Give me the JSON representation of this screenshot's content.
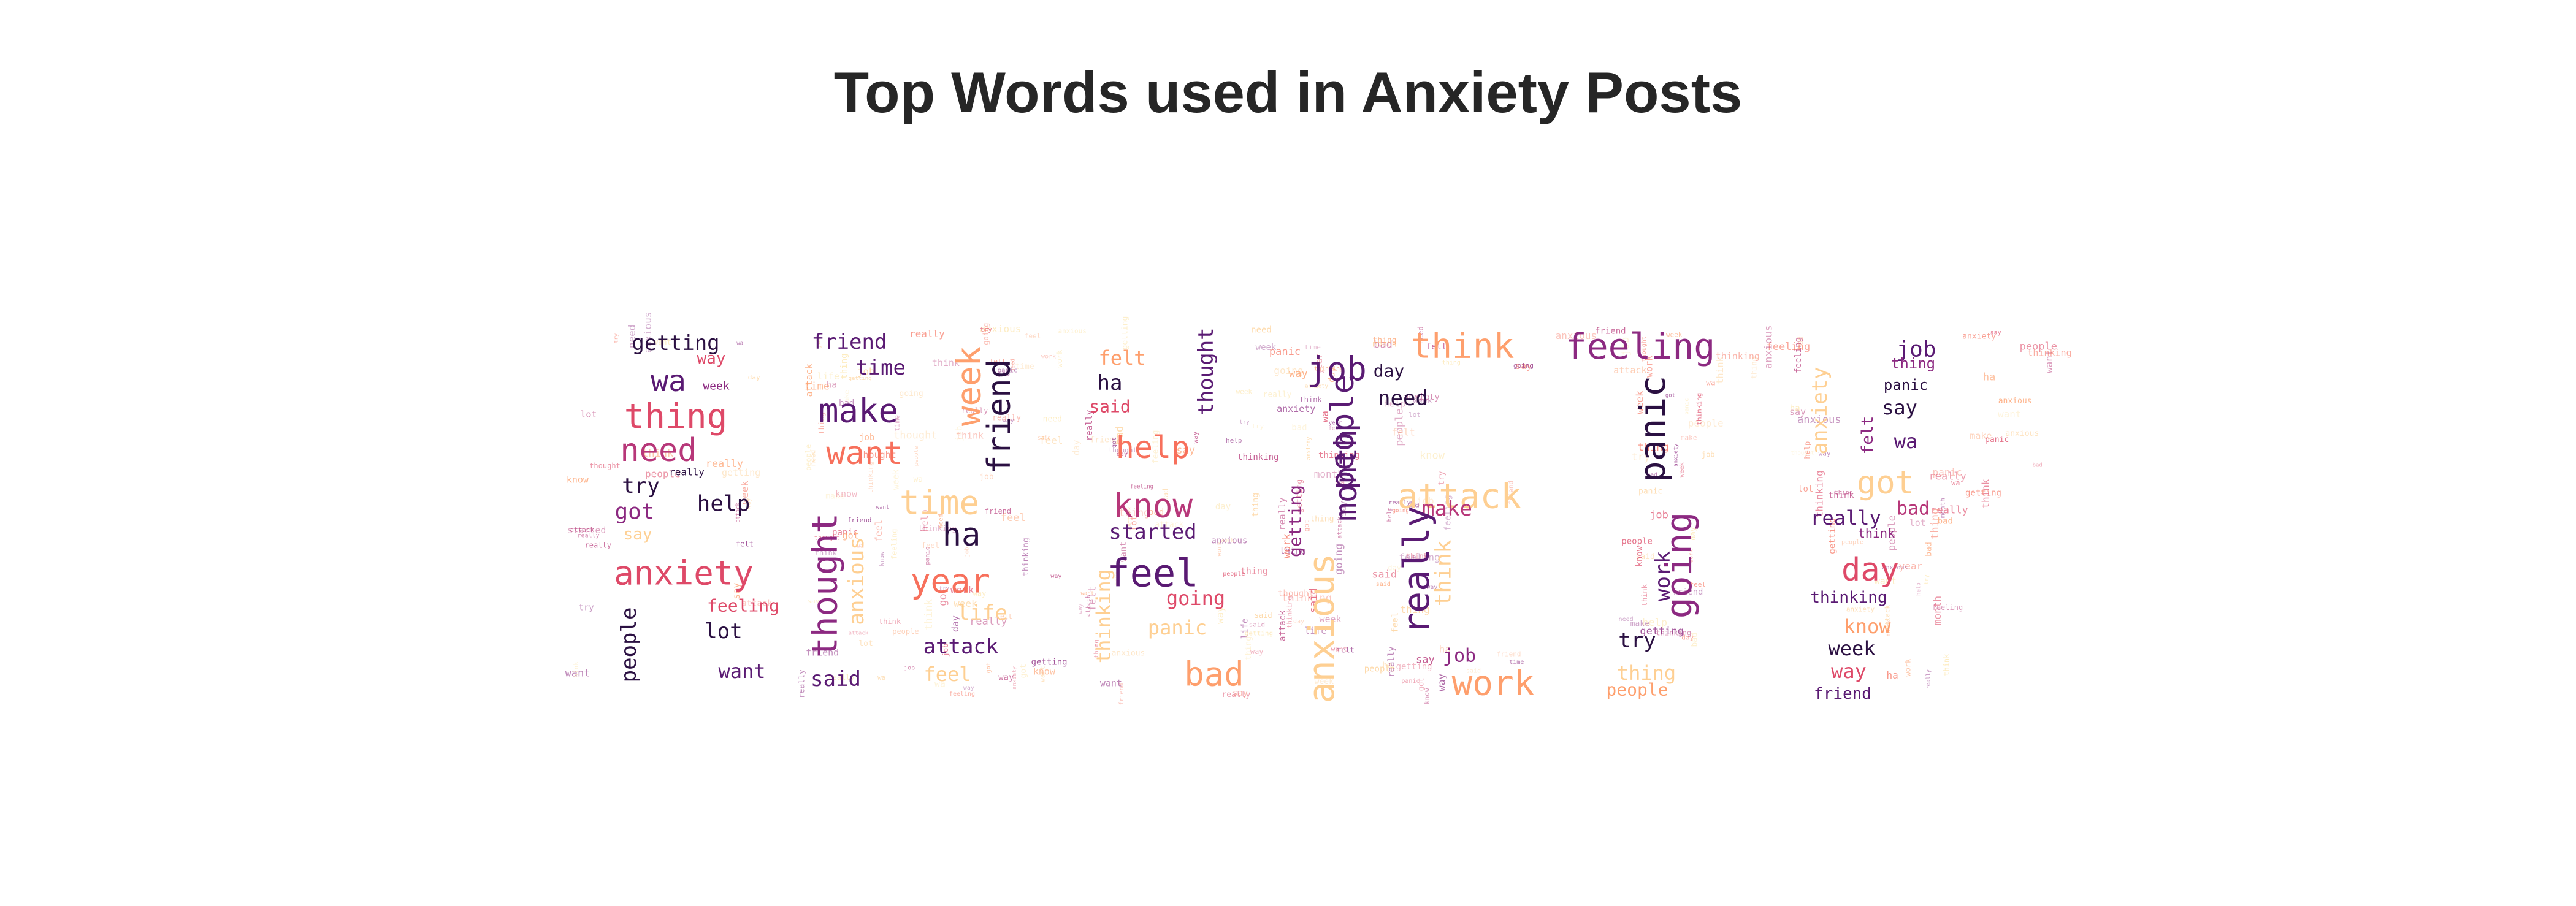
{
  "chart_data": {
    "type": "wordcloud",
    "title": "Top Words used in Anxiety Posts",
    "mask_shape": "ANXIETY",
    "colormap": "magma",
    "palette": [
      "#2b1042",
      "#5a1a73",
      "#8c2981",
      "#b73779",
      "#de4968",
      "#f7705c",
      "#fe9f6d",
      "#fecf92",
      "#fde7b0"
    ],
    "words": [
      {
        "text": "getting",
        "freq": 28,
        "color": "#2b1042"
      },
      {
        "text": "way",
        "freq": 22,
        "color": "#de4968"
      },
      {
        "text": "wa",
        "freq": 52,
        "color": "#5a1a73"
      },
      {
        "text": "week",
        "freq": 18,
        "color": "#8c2981"
      },
      {
        "text": "thing",
        "freq": 56,
        "color": "#de4968"
      },
      {
        "text": "need",
        "freq": 50,
        "color": "#b73779"
      },
      {
        "text": "really",
        "freq": 14,
        "color": "#2b1042"
      },
      {
        "text": "try",
        "freq": 28,
        "color": "#2b1042"
      },
      {
        "text": "got",
        "freq": 32,
        "color": "#8c2981"
      },
      {
        "text": "help",
        "freq": 30,
        "color": "#2b1042"
      },
      {
        "text": "say",
        "freq": 26,
        "color": "#fecf92"
      },
      {
        "text": "anxiety",
        "freq": 56,
        "color": "#de4968"
      },
      {
        "text": "feeling",
        "freq": 30,
        "color": "#de4968"
      },
      {
        "text": "people",
        "freq": 30,
        "color": "#2b1042"
      },
      {
        "text": "lot",
        "freq": 32,
        "color": "#2b1042"
      },
      {
        "text": "want",
        "freq": 30,
        "color": "#5a1a73"
      },
      {
        "text": "friend",
        "freq": 28,
        "color": "#5a1a73"
      },
      {
        "text": "time",
        "freq": 34,
        "color": "#5a1a73"
      },
      {
        "text": "make",
        "freq": 56,
        "color": "#5a1a73"
      },
      {
        "text": "week",
        "freq": 54,
        "color": "#fe9f6d"
      },
      {
        "text": "friend",
        "freq": 56,
        "color": "#2b1042"
      },
      {
        "text": "want",
        "freq": 54,
        "color": "#f7705c"
      },
      {
        "text": "time",
        "freq": 52,
        "color": "#fecf92"
      },
      {
        "text": "thought",
        "freq": 58,
        "color": "#8c2981"
      },
      {
        "text": "anxious",
        "freq": 28,
        "color": "#fecf92"
      },
      {
        "text": "ha",
        "freq": 50,
        "color": "#2b1042"
      },
      {
        "text": "year",
        "freq": 54,
        "color": "#f7705c"
      },
      {
        "text": "life",
        "freq": 34,
        "color": "#fecf92"
      },
      {
        "text": "attack",
        "freq": 32,
        "color": "#5a1a73"
      },
      {
        "text": "said",
        "freq": 32,
        "color": "#5a1a73"
      },
      {
        "text": "feel",
        "freq": 30,
        "color": "#fecf92"
      },
      {
        "text": "felt",
        "freq": 30,
        "color": "#fe9f6d"
      },
      {
        "text": "ha",
        "freq": 34,
        "color": "#2b1042"
      },
      {
        "text": "said",
        "freq": 30,
        "color": "#de4968"
      },
      {
        "text": "help",
        "freq": 52,
        "color": "#f7705c"
      },
      {
        "text": "know",
        "freq": 56,
        "color": "#b73779"
      },
      {
        "text": "started",
        "freq": 34,
        "color": "#5a1a73"
      },
      {
        "text": "feel",
        "freq": 60,
        "color": "#5a1a73"
      },
      {
        "text": "going",
        "freq": 30,
        "color": "#de4968"
      },
      {
        "text": "thinking",
        "freq": 30,
        "color": "#fecf92"
      },
      {
        "text": "panic",
        "freq": 30,
        "color": "#fecf92"
      },
      {
        "text": "bad",
        "freq": 54,
        "color": "#fe9f6d"
      },
      {
        "text": "thought",
        "freq": 34,
        "color": "#5a1a73"
      },
      {
        "text": "job",
        "freq": 56,
        "color": "#5a1a73"
      },
      {
        "text": "people",
        "freq": 54,
        "color": "#5a1a73"
      },
      {
        "text": "month",
        "freq": 52,
        "color": "#5a1a73"
      },
      {
        "text": "anxious",
        "freq": 58,
        "color": "#fecf92"
      },
      {
        "text": "getting",
        "freq": 28,
        "color": "#8c2981"
      },
      {
        "text": "think",
        "freq": 56,
        "color": "#fe9f6d"
      },
      {
        "text": "day",
        "freq": 28,
        "color": "#2b1042"
      },
      {
        "text": "need",
        "freq": 32,
        "color": "#2b1042"
      },
      {
        "text": "attack",
        "freq": 56,
        "color": "#fecf92"
      },
      {
        "text": "make",
        "freq": 32,
        "color": "#b73779"
      },
      {
        "text": "really",
        "freq": 58,
        "color": "#5a1a73"
      },
      {
        "text": "think",
        "freq": 34,
        "color": "#fecf92"
      },
      {
        "text": "job",
        "freq": 28,
        "color": "#8c2981"
      },
      {
        "text": "work",
        "freq": 56,
        "color": "#fe9f6d"
      },
      {
        "text": "feeling",
        "freq": 56,
        "color": "#8c2981"
      },
      {
        "text": "panic",
        "freq": 58,
        "color": "#2b1042"
      },
      {
        "text": "going",
        "freq": 58,
        "color": "#8c2981"
      },
      {
        "text": "work",
        "freq": 32,
        "color": "#5a1a73"
      },
      {
        "text": "try",
        "freq": 30,
        "color": "#2b1042"
      },
      {
        "text": "thing",
        "freq": 30,
        "color": "#fecf92"
      },
      {
        "text": "people",
        "freq": 24,
        "color": "#fe9f6d"
      },
      {
        "text": "job",
        "freq": 30,
        "color": "#5a1a73"
      },
      {
        "text": "thing",
        "freq": 22,
        "color": "#8c2981"
      },
      {
        "text": "panic",
        "freq": 22,
        "color": "#2b1042"
      },
      {
        "text": "say",
        "freq": 30,
        "color": "#2b1042"
      },
      {
        "text": "wa",
        "freq": 30,
        "color": "#5a1a73"
      },
      {
        "text": "anxiety",
        "freq": 34,
        "color": "#fecf92"
      },
      {
        "text": "felt",
        "freq": 24,
        "color": "#8c2981"
      },
      {
        "text": "got",
        "freq": 52,
        "color": "#fecf92"
      },
      {
        "text": "bad",
        "freq": 30,
        "color": "#b73779"
      },
      {
        "text": "really",
        "freq": 30,
        "color": "#5a1a73"
      },
      {
        "text": "think",
        "freq": 20,
        "color": "#8c2981"
      },
      {
        "text": "day",
        "freq": 52,
        "color": "#de4968"
      },
      {
        "text": "thinking",
        "freq": 24,
        "color": "#5a1a73"
      },
      {
        "text": "know",
        "freq": 30,
        "color": "#fe9f6d"
      },
      {
        "text": "week",
        "freq": 32,
        "color": "#2b1042"
      },
      {
        "text": "way",
        "freq": 32,
        "color": "#de4968"
      },
      {
        "text": "friend",
        "freq": 24,
        "color": "#5a1a73"
      }
    ]
  }
}
